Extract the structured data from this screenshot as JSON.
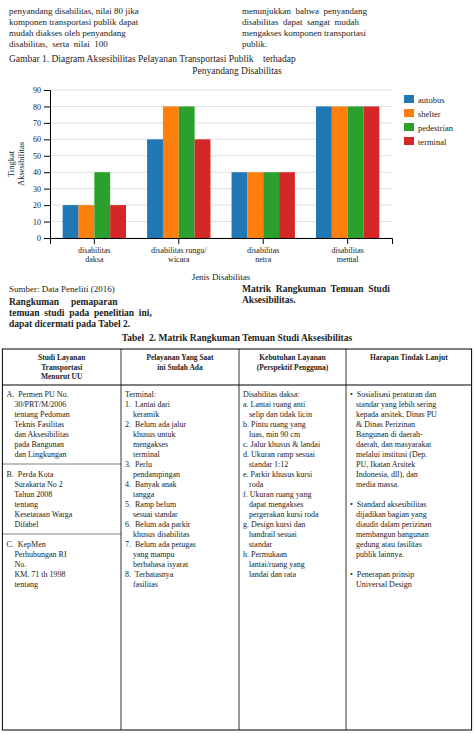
{
  "chart_data": {
    "type": "bar",
    "title": "Gambar 1. Diagram Aksesibilitas Pelayanan Transportasi Publik    terhadap\nPenyandang Disabilitas",
    "xlabel": "Jenis Disabilitas",
    "ylabel": "Tingkat\nAksesibilitas",
    "categories": [
      "disabilitas\ndaksa",
      "disabilitas rungu/\nwicara",
      "disabilitas\nnetra",
      "disabilitas\nmental"
    ],
    "series": [
      {
        "name": "autobus",
        "values": [
          20,
          60,
          40,
          80
        ]
      },
      {
        "name": "shelter",
        "values": [
          20,
          80,
          40,
          80
        ]
      },
      {
        "name": "pedestrian",
        "values": [
          40,
          80,
          40,
          80
        ]
      },
      {
        "name": "terminal",
        "values": [
          20,
          60,
          40,
          80
        ]
      }
    ],
    "ylim": [
      0,
      90
    ],
    "yticks": [
      0,
      10,
      20,
      30,
      40,
      50,
      60,
      70,
      80,
      90
    ],
    "grid": true,
    "legend": "upper right",
    "annotations": [
      "penyandang disabilitas, nilai 80 jika\nkomponen transportasi publik dapat\nmudah diakses oleh penyandang\ndisabilitas,  serta  nilai  100",
      "menunjukkan  bahwa  penyandang\ndisabilitas  dapat  sangat  mudah\nmengakses komponen transportasi\npublik.",
      "Sumber: Data Peneliti (2016)",
      "Matrik  Rangkuman  Temuan  Studi\nAksesibilitas.",
      "Rangkuman     pemaparan",
      "temuan  studi  pada  penelitian  ini,",
      "dapat dicermati pada Tabel 2."
    ],
    "table": {
      "title": "Tabel  2. Matrik Rangkuman Temuan Studi Aksesibilitas",
      "header": [
        "Studi Layanan\nTransportasi\nMenurut UU",
        "Pelayanan Yang Saat\nini Sudah Ada",
        "Kebutuhan Layanan\n(Perspektif Pengguna)",
        "Harapan Tindak Lanjut"
      ],
      "rows": [
        [
          "A.  Permen PU No.\n    30/PRT/M/2006\n    tentang Pedoman\n    Teknis Fasilitas\n    dan Aksesibilitas\n    pada Bangunan\n    dan Lingkungan\n\nB.  Perda Kota\n    Surakarta No 2\n    Tahun 2008\n    tentang\n    Kesetaraan Warga\n    Difabel\n\nC.  KepMen\n    Perhubungan RI\n    No.\n    KM. 71 th 1998\n    tentang",
          "Terminal:\n1.  Lantai dari\n    keramik\n2.  Belum ada jalur\n    khusus untuk\n    mengakses\n    terminal\n3.  Perlu\n    pendampingan\n4.  Banyak anak\n    tangga\n5.  Ramp belum\n    sesuai standar\n6.  Belum ada parkir\n    khusus disabilitas\n7.  Belum ada petugas\n    yang mampu\n    berbahasa isyarat\n8.  Terbatasnya\n    fasilitas",
          "Disabilitas daksa:\na. Lantai ruang anti\n   selip dan tidak licin\nb. Pintu ruang yang\n   luas, min 90 cm\nc. Jalur khusus & landai\nd. Ukuran ramp sesuai\n   standar 1:12\ne. Parkir khusus kursi\n   roda\nf. Ukuran ruang yang\n   dapat mengakses\n   pergerakan kursi roda\ng. Design kursi dan\n   handrail sesuai\n   standar\nh. Permukaan\n   lantai/ruang yang\n   landai dan rata",
          "•  Sosialisasi peraturan dan\n   standar yang lebih sering\n   kepada arsitek, Dinas PU\n   & Dinas Perizinan\n   Bangunan di daerah-\n   daerah, dan masyarakat\n   melalui institusi (Dep.\n   PU, Ikatan Arsitek\n   Indonesia, dll), dan\n   media massa.\n\n•  Standard aksesibilitas\n   dijadikan bagian yang\n   diaudit dalam perizinan\n   membangun bangunan\n   gedung atau fasilitas\n   publik lainnya.\n\n•  Penerapan prinsip\n   Universal Design"
        ]
      ]
    }
  }
}
